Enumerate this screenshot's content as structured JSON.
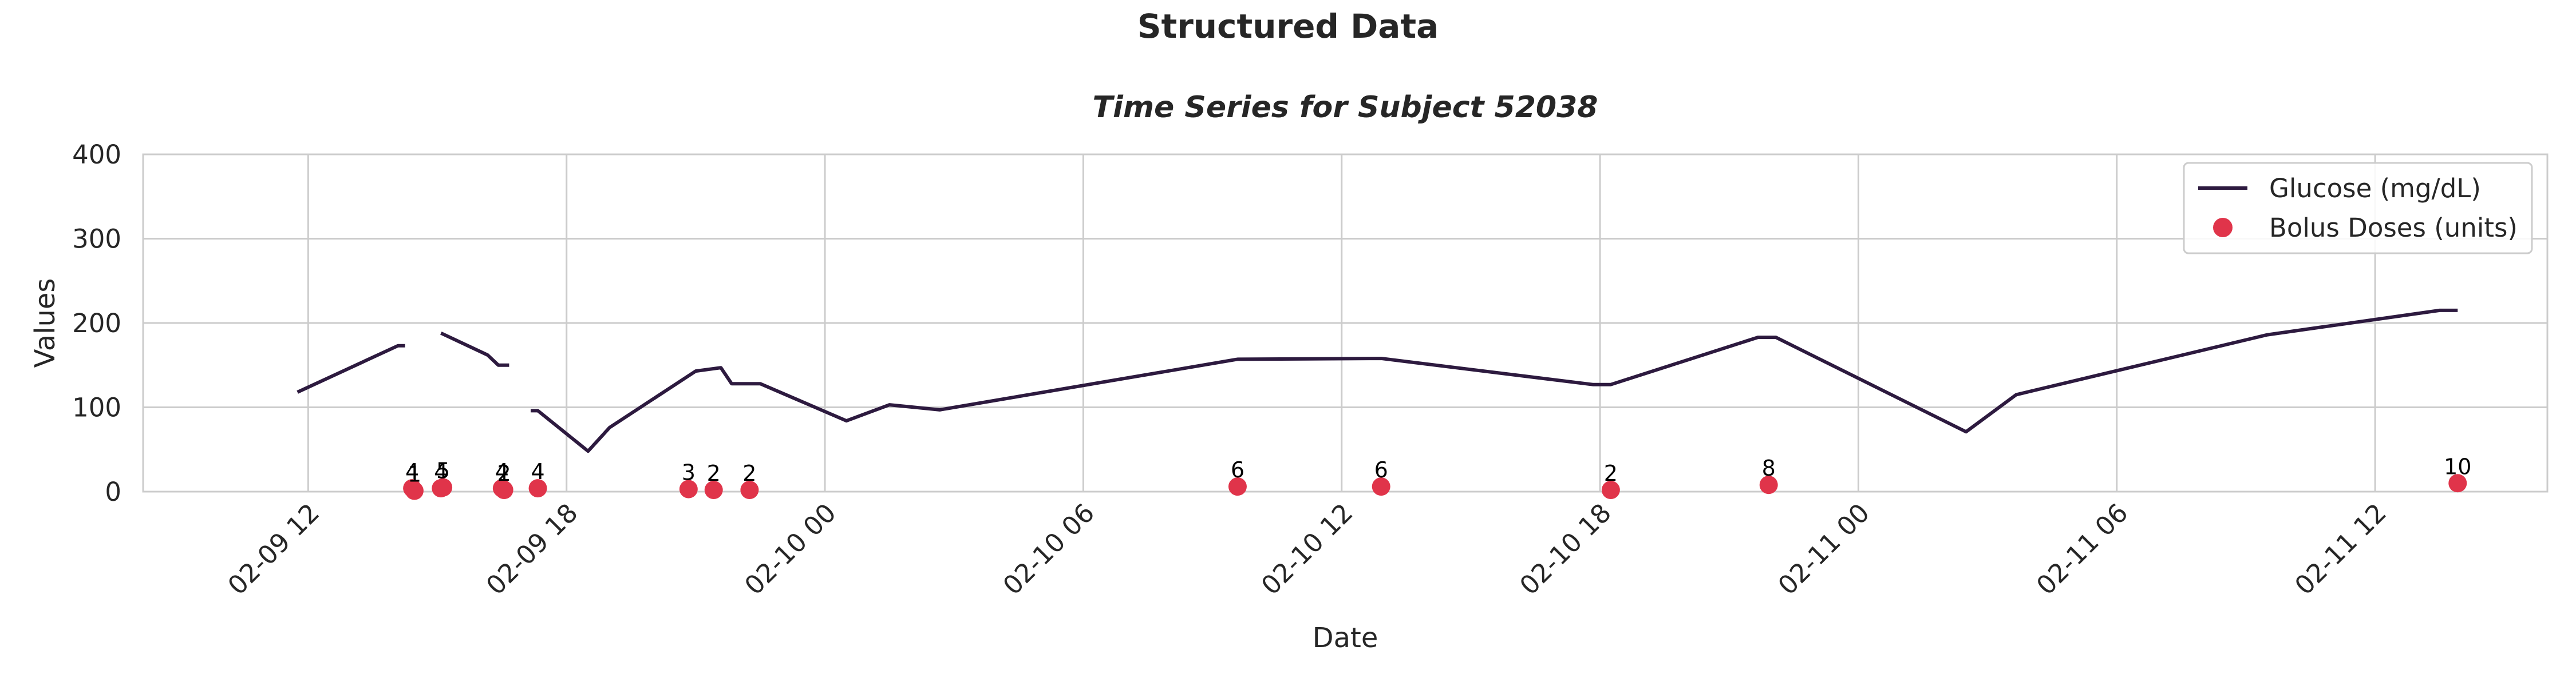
{
  "figure_title": "Structured Data",
  "chart_data": {
    "type": "line",
    "title": "Time Series for Subject 52038",
    "xlabel": "Date",
    "ylabel": "Values",
    "xlim": [
      "2016-02-09 08:10",
      "2016-02-11 16:00"
    ],
    "ylim": [
      0,
      400
    ],
    "y_ticks": [
      0,
      100,
      200,
      300,
      400
    ],
    "x_ticks": [
      {
        "label": "02-09 12",
        "t": "2016-02-09 12:00"
      },
      {
        "label": "02-09 18",
        "t": "2016-02-09 18:00"
      },
      {
        "label": "02-10 00",
        "t": "2016-02-10 00:00"
      },
      {
        "label": "02-10 06",
        "t": "2016-02-10 06:00"
      },
      {
        "label": "02-10 12",
        "t": "2016-02-10 12:00"
      },
      {
        "label": "02-10 18",
        "t": "2016-02-10 18:00"
      },
      {
        "label": "02-11 00",
        "t": "2016-02-11 00:00"
      },
      {
        "label": "02-11 06",
        "t": "2016-02-11 06:00"
      },
      {
        "label": "02-11 12",
        "t": "2016-02-11 12:00"
      }
    ],
    "grid": true,
    "legend_position": "top-right",
    "series": [
      {
        "name": "Glucose (mg/dL)",
        "kind": "line",
        "color": "#2d1a3f",
        "segments": [
          [
            {
              "t": "2016-02-09 11:45",
              "y": 118
            },
            {
              "t": "2016-02-09 14:05",
              "y": 173
            },
            {
              "t": "2016-02-09 14:15",
              "y": 173
            }
          ],
          [
            {
              "t": "2016-02-09 15:05",
              "y": 188
            },
            {
              "t": "2016-02-09 16:10",
              "y": 162
            },
            {
              "t": "2016-02-09 16:25",
              "y": 150
            },
            {
              "t": "2016-02-09 16:40",
              "y": 150
            }
          ],
          [
            {
              "t": "2016-02-09 17:10",
              "y": 96
            },
            {
              "t": "2016-02-09 17:20",
              "y": 96
            },
            {
              "t": "2016-02-09 18:30",
              "y": 48
            },
            {
              "t": "2016-02-09 19:00",
              "y": 76
            },
            {
              "t": "2016-02-09 21:00",
              "y": 143
            },
            {
              "t": "2016-02-09 21:35",
              "y": 147
            },
            {
              "t": "2016-02-09 21:50",
              "y": 128
            },
            {
              "t": "2016-02-09 22:30",
              "y": 128
            },
            {
              "t": "2016-02-10 00:30",
              "y": 84
            },
            {
              "t": "2016-02-10 01:30",
              "y": 103
            },
            {
              "t": "2016-02-10 02:40",
              "y": 97
            },
            {
              "t": "2016-02-10 09:35",
              "y": 157
            },
            {
              "t": "2016-02-10 12:55",
              "y": 158
            },
            {
              "t": "2016-02-10 17:50",
              "y": 127
            },
            {
              "t": "2016-02-10 18:15",
              "y": 127
            },
            {
              "t": "2016-02-10 21:40",
              "y": 183
            },
            {
              "t": "2016-02-10 22:05",
              "y": 183
            },
            {
              "t": "2016-02-11 02:30",
              "y": 71
            },
            {
              "t": "2016-02-11 03:40",
              "y": 115
            },
            {
              "t": "2016-02-11 09:30",
              "y": 186
            },
            {
              "t": "2016-02-11 13:30",
              "y": 215
            },
            {
              "t": "2016-02-11 13:55",
              "y": 215
            }
          ]
        ]
      },
      {
        "name": "Bolus Doses (units)",
        "kind": "scatter",
        "color": "#e0344a",
        "points": [
          {
            "t": "2016-02-09 14:25",
            "y": 4,
            "label": "4"
          },
          {
            "t": "2016-02-09 14:28",
            "y": 1,
            "label": "1"
          },
          {
            "t": "2016-02-09 15:05",
            "y": 4,
            "label": "4"
          },
          {
            "t": "2016-02-09 15:08",
            "y": 5,
            "label": "5"
          },
          {
            "t": "2016-02-09 16:30",
            "y": 4,
            "label": "4"
          },
          {
            "t": "2016-02-09 16:33",
            "y": 2,
            "label": "2"
          },
          {
            "t": "2016-02-09 17:20",
            "y": 4,
            "label": "4"
          },
          {
            "t": "2016-02-09 20:50",
            "y": 3,
            "label": "3"
          },
          {
            "t": "2016-02-09 21:25",
            "y": 2,
            "label": "2"
          },
          {
            "t": "2016-02-09 22:15",
            "y": 2,
            "label": "2"
          },
          {
            "t": "2016-02-10 09:35",
            "y": 6,
            "label": "6"
          },
          {
            "t": "2016-02-10 12:55",
            "y": 6,
            "label": "6"
          },
          {
            "t": "2016-02-10 18:15",
            "y": 2,
            "label": "2"
          },
          {
            "t": "2016-02-10 21:55",
            "y": 8,
            "label": "8"
          },
          {
            "t": "2016-02-11 13:55",
            "y": 10,
            "label": "10"
          }
        ]
      }
    ]
  }
}
